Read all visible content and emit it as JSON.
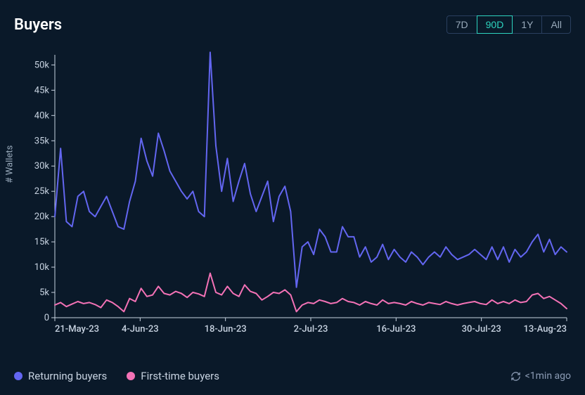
{
  "header": {
    "title": "Buyers",
    "ranges": [
      "7D",
      "90D",
      "1Y",
      "All"
    ],
    "active_range": "90D"
  },
  "chart": {
    "type": "line",
    "background_color": "#0a1929",
    "y_axis_label": "# Wallets",
    "ylim": [
      0,
      52000
    ],
    "ytick_step": 5000,
    "ytick_labels": [
      "0",
      "5k",
      "10k",
      "15k",
      "20k",
      "25k",
      "30k",
      "35k",
      "40k",
      "45k",
      "50k"
    ],
    "x_labels": [
      "21-May-23",
      "4-Jun-23",
      "18-Jun-23",
      "2-Jul-23",
      "16-Jul-23",
      "30-Jul-23",
      "13-Aug-23"
    ],
    "axis_color": "#c7d2e0",
    "series": [
      {
        "name": "Returning buyers",
        "color": "#6366f1",
        "line_width": 2,
        "values": [
          20000,
          33500,
          19000,
          18000,
          24000,
          25000,
          21000,
          20000,
          22000,
          24000,
          21000,
          18000,
          17500,
          23000,
          27000,
          35500,
          31000,
          28000,
          36500,
          33000,
          29000,
          27000,
          25000,
          23500,
          25000,
          21000,
          20000,
          52500,
          34000,
          25000,
          31500,
          23000,
          27000,
          30500,
          24500,
          21000,
          24000,
          27000,
          19000,
          24000,
          26000,
          21000,
          6000,
          14000,
          15000,
          12500,
          17500,
          16000,
          13000,
          13000,
          18000,
          16000,
          16000,
          12000,
          14000,
          11000,
          12000,
          14500,
          11500,
          13500,
          12000,
          11000,
          13000,
          12000,
          10500,
          12000,
          13000,
          12000,
          14000,
          12500,
          11500,
          12000,
          12500,
          13500,
          12500,
          11500,
          14000,
          11500,
          14000,
          11000,
          13500,
          12000,
          13000,
          15000,
          16500,
          13000,
          15500,
          12500,
          14000,
          13000
        ]
      },
      {
        "name": "First-time buyers",
        "color": "#f472b6",
        "line_width": 2,
        "values": [
          2500,
          3000,
          2200,
          2700,
          3200,
          2800,
          3000,
          2600,
          2000,
          3500,
          3000,
          2200,
          1200,
          3800,
          3200,
          5800,
          4200,
          4500,
          6200,
          4800,
          4500,
          5200,
          4800,
          4000,
          5000,
          4700,
          4200,
          8800,
          5000,
          4500,
          6200,
          4800,
          4200,
          6500,
          5200,
          4800,
          3500,
          4200,
          5000,
          4800,
          5500,
          4500,
          1200,
          2500,
          3000,
          2800,
          3500,
          3200,
          2800,
          3000,
          3800,
          3200,
          3000,
          2500,
          3200,
          2800,
          2500,
          3500,
          2800,
          3000,
          2800,
          2500,
          3200,
          2800,
          2500,
          3000,
          2800,
          2600,
          3200,
          2800,
          2500,
          2800,
          3000,
          3200,
          2800,
          2600,
          3500,
          2800,
          3200,
          2800,
          3500,
          3000,
          3200,
          4500,
          4800,
          3800,
          4200,
          3500,
          2800,
          1800
        ]
      }
    ]
  },
  "footer": {
    "updated_label": "<1min ago"
  }
}
